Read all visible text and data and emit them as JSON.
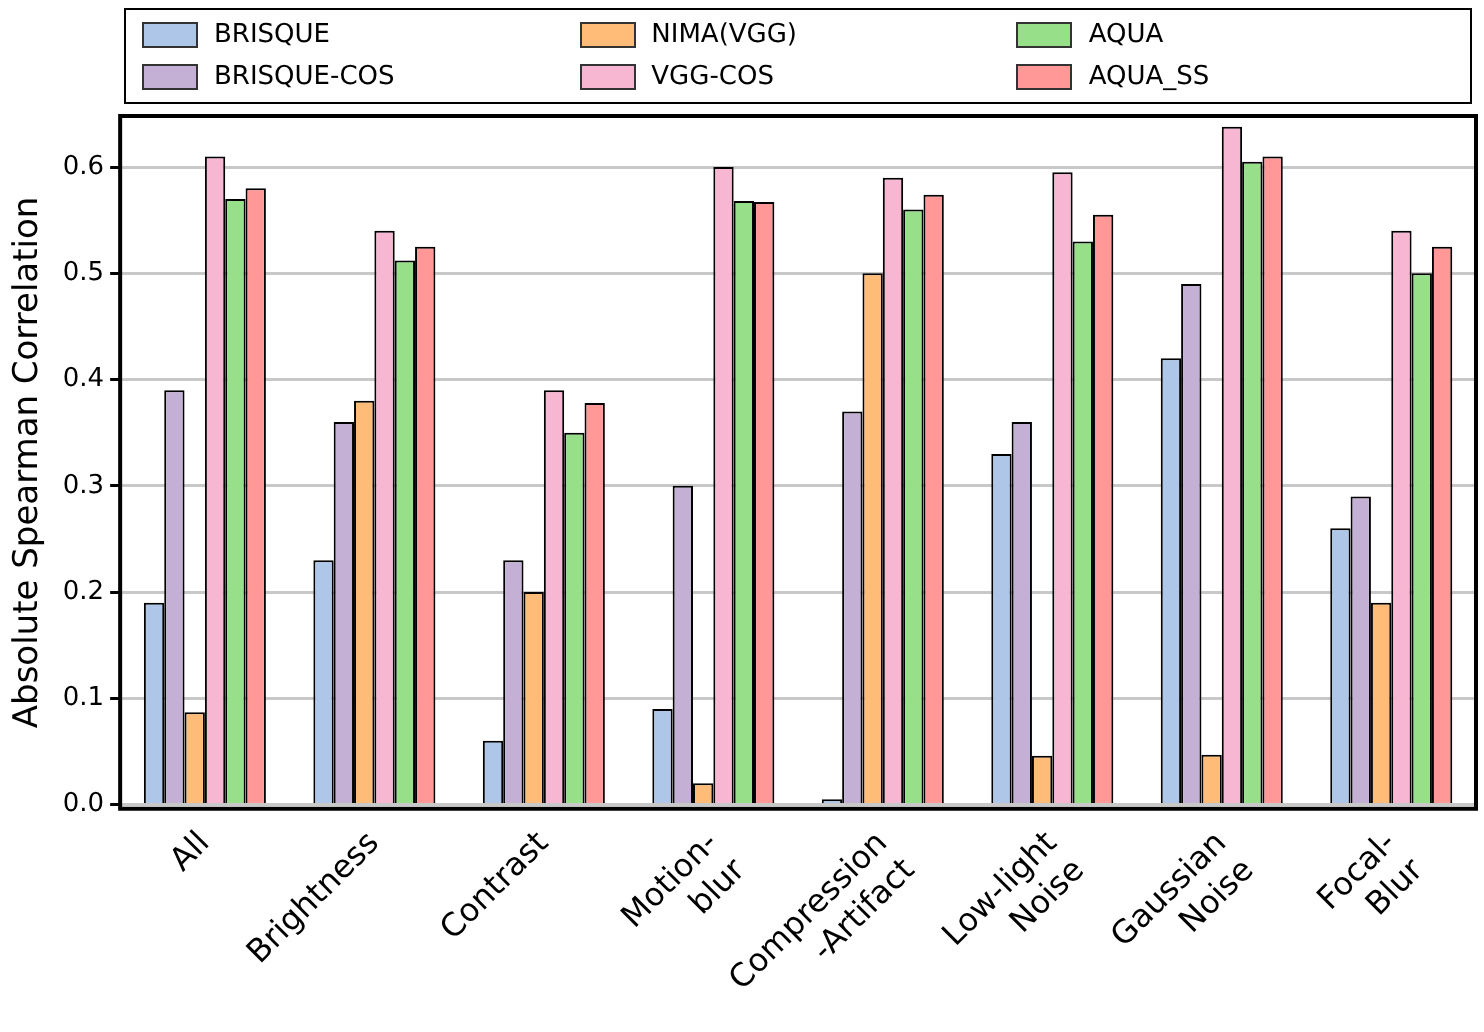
{
  "chart_data": {
    "type": "bar",
    "ylabel": "Absolute Spearman Correlation",
    "categories": [
      "All",
      "Brightness",
      "Contrast",
      "Motion-\nblur",
      "Compression\n-Artifact",
      "Low-light\nNoise",
      "Gaussian\nNoise",
      "Focal-\nBlur"
    ],
    "series": [
      {
        "name": "BRISQUE",
        "color": "#aec7e8",
        "values": [
          0.19,
          0.23,
          0.06,
          0.09,
          0.005,
          0.33,
          0.42,
          0.26
        ]
      },
      {
        "name": "BRISQUE-COS",
        "color": "#c5b0d5",
        "values": [
          0.39,
          0.36,
          0.23,
          0.3,
          0.37,
          0.36,
          0.49,
          0.29
        ]
      },
      {
        "name": "NIMA(VGG)",
        "color": "#ffbb78",
        "values": [
          0.087,
          0.38,
          0.2,
          0.02,
          0.5,
          0.046,
          0.047,
          0.19
        ]
      },
      {
        "name": "VGG-COS",
        "color": "#f7b6d2",
        "values": [
          0.61,
          0.54,
          0.39,
          0.6,
          0.59,
          0.595,
          0.638,
          0.54
        ]
      },
      {
        "name": "AQUA",
        "color": "#98df8a",
        "values": [
          0.57,
          0.512,
          0.35,
          0.568,
          0.56,
          0.53,
          0.605,
          0.5
        ]
      },
      {
        "name": "AQUA_SS",
        "color": "#ff9896",
        "values": [
          0.58,
          0.525,
          0.378,
          0.567,
          0.574,
          0.555,
          0.61,
          0.525
        ]
      }
    ],
    "ylim": [
      -0.004,
      0.648
    ],
    "yticks": [
      {
        "value": 0,
        "label": "0.0"
      },
      {
        "value": 0.1,
        "label": "0.1"
      },
      {
        "value": 0.2,
        "label": "0.2"
      },
      {
        "value": 0.3,
        "label": "0.3"
      },
      {
        "value": 0.4,
        "label": "0.4"
      },
      {
        "value": 0.5,
        "label": "0.5"
      },
      {
        "value": 0.6,
        "label": "0.6"
      }
    ],
    "grid": "y",
    "legend": "top"
  }
}
